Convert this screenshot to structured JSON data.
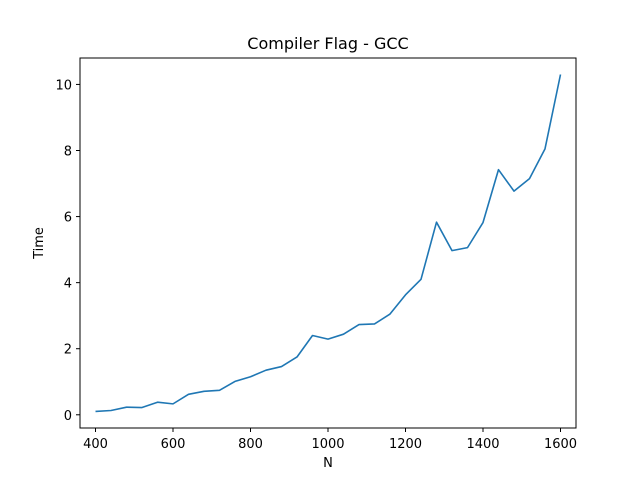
{
  "chart_data": {
    "type": "line",
    "title": "Compiler Flag - GCC",
    "xlabel": "N",
    "ylabel": "Time",
    "xlim": [
      360,
      1640
    ],
    "ylim": [
      -0.4,
      10.8
    ],
    "xticks": [
      400,
      600,
      800,
      1000,
      1200,
      1400,
      1600
    ],
    "yticks": [
      0,
      2,
      4,
      6,
      8,
      10
    ],
    "grid": false,
    "color": "#1f77b4",
    "series": [
      {
        "x": [
          400,
          440,
          480,
          520,
          560,
          600,
          640,
          680,
          720,
          760,
          800,
          840,
          880,
          920,
          960,
          1000,
          1040,
          1080,
          1120,
          1160,
          1200,
          1240,
          1280,
          1320,
          1360,
          1400,
          1440,
          1480,
          1520,
          1560,
          1600
        ],
        "values": [
          0.1,
          0.13,
          0.23,
          0.22,
          0.38,
          0.33,
          0.62,
          0.71,
          0.74,
          1.01,
          1.15,
          1.35,
          1.46,
          1.75,
          2.4,
          2.29,
          2.44,
          2.73,
          2.75,
          3.05,
          3.63,
          4.1,
          5.83,
          4.97,
          5.06,
          5.82,
          7.42,
          6.77,
          7.15,
          8.05,
          10.3
        ]
      }
    ]
  }
}
